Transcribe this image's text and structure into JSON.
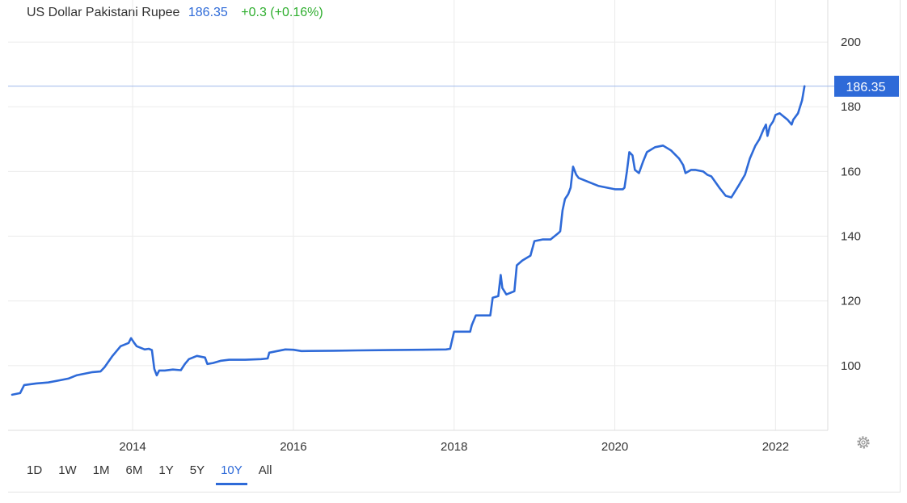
{
  "header": {
    "name": "US Dollar Pakistani Rupee",
    "price": "186.35",
    "change": "+0.3 (+0.16%)"
  },
  "ranges": [
    {
      "label": "1D",
      "active": false
    },
    {
      "label": "1W",
      "active": false
    },
    {
      "label": "1M",
      "active": false
    },
    {
      "label": "6M",
      "active": false
    },
    {
      "label": "1Y",
      "active": false
    },
    {
      "label": "5Y",
      "active": false
    },
    {
      "label": "10Y",
      "active": true
    },
    {
      "label": "All",
      "active": false
    }
  ],
  "settings_icon": "gear-icon",
  "colors": {
    "line": "#2e6ad8",
    "up": "#2fae2f",
    "grid": "#ebebeb",
    "price_tag": "#2e6ad8"
  },
  "chart_data": {
    "type": "line",
    "title": "US Dollar Pakistani Rupee",
    "last_value_label": "186.35",
    "x_ticks": [
      "2014",
      "2016",
      "2018",
      "2020",
      "2022"
    ],
    "y_ticks": [
      100,
      120,
      140,
      160,
      180,
      200
    ],
    "xlim": [
      2012.45,
      2022.65
    ],
    "ylim": [
      80,
      213
    ],
    "grid": true,
    "series": [
      {
        "values": [
          [
            2012.5,
            91
          ],
          [
            2012.6,
            91.5
          ],
          [
            2012.65,
            94
          ],
          [
            2012.8,
            94.5
          ],
          [
            2012.95,
            94.8
          ],
          [
            2013.1,
            95.5
          ],
          [
            2013.2,
            96
          ],
          [
            2013.3,
            97
          ],
          [
            2013.5,
            98
          ],
          [
            2013.6,
            98.2
          ],
          [
            2013.65,
            99.5
          ],
          [
            2013.75,
            103
          ],
          [
            2013.85,
            106
          ],
          [
            2013.95,
            107
          ],
          [
            2013.98,
            108.5
          ],
          [
            2014.02,
            107
          ],
          [
            2014.05,
            106
          ],
          [
            2014.15,
            105
          ],
          [
            2014.2,
            105.2
          ],
          [
            2014.24,
            104.8
          ],
          [
            2014.27,
            99
          ],
          [
            2014.3,
            97
          ],
          [
            2014.33,
            98.5
          ],
          [
            2014.4,
            98.5
          ],
          [
            2014.5,
            98.8
          ],
          [
            2014.6,
            98.6
          ],
          [
            2014.65,
            100.5
          ],
          [
            2014.7,
            102
          ],
          [
            2014.8,
            103
          ],
          [
            2014.9,
            102.5
          ],
          [
            2014.93,
            100.5
          ],
          [
            2015.0,
            100.8
          ],
          [
            2015.1,
            101.5
          ],
          [
            2015.2,
            101.8
          ],
          [
            2015.4,
            101.8
          ],
          [
            2015.6,
            102
          ],
          [
            2015.68,
            102.2
          ],
          [
            2015.7,
            104
          ],
          [
            2015.8,
            104.5
          ],
          [
            2015.9,
            105
          ],
          [
            2016.0,
            104.9
          ],
          [
            2016.1,
            104.5
          ],
          [
            2016.5,
            104.6
          ],
          [
            2016.8,
            104.7
          ],
          [
            2017.2,
            104.8
          ],
          [
            2017.6,
            104.9
          ],
          [
            2017.9,
            105
          ],
          [
            2017.95,
            105.2
          ],
          [
            2018.0,
            110.5
          ],
          [
            2018.1,
            110.5
          ],
          [
            2018.2,
            110.5
          ],
          [
            2018.22,
            112.5
          ],
          [
            2018.27,
            115.5
          ],
          [
            2018.45,
            115.5
          ],
          [
            2018.48,
            121
          ],
          [
            2018.55,
            121.5
          ],
          [
            2018.58,
            128
          ],
          [
            2018.6,
            124
          ],
          [
            2018.65,
            122
          ],
          [
            2018.75,
            123
          ],
          [
            2018.78,
            131
          ],
          [
            2018.85,
            132.5
          ],
          [
            2018.95,
            134
          ],
          [
            2019.0,
            138.5
          ],
          [
            2019.1,
            139
          ],
          [
            2019.2,
            139
          ],
          [
            2019.3,
            141
          ],
          [
            2019.32,
            141.5
          ],
          [
            2019.35,
            148
          ],
          [
            2019.38,
            151.5
          ],
          [
            2019.42,
            153
          ],
          [
            2019.45,
            155
          ],
          [
            2019.48,
            161.5
          ],
          [
            2019.52,
            159
          ],
          [
            2019.55,
            158
          ],
          [
            2019.6,
            157.5
          ],
          [
            2019.7,
            156.5
          ],
          [
            2019.8,
            155.5
          ],
          [
            2019.9,
            155
          ],
          [
            2020.0,
            154.5
          ],
          [
            2020.1,
            154.5
          ],
          [
            2020.12,
            155
          ],
          [
            2020.15,
            160
          ],
          [
            2020.18,
            166
          ],
          [
            2020.22,
            165
          ],
          [
            2020.25,
            160.5
          ],
          [
            2020.3,
            159.5
          ],
          [
            2020.35,
            163
          ],
          [
            2020.4,
            166
          ],
          [
            2020.5,
            167.5
          ],
          [
            2020.6,
            168
          ],
          [
            2020.7,
            166.5
          ],
          [
            2020.8,
            164
          ],
          [
            2020.85,
            162
          ],
          [
            2020.88,
            159.5
          ],
          [
            2020.95,
            160.5
          ],
          [
            2021.0,
            160.5
          ],
          [
            2021.1,
            160
          ],
          [
            2021.15,
            159
          ],
          [
            2021.2,
            158.5
          ],
          [
            2021.3,
            155
          ],
          [
            2021.38,
            152.5
          ],
          [
            2021.45,
            152
          ],
          [
            2021.55,
            156
          ],
          [
            2021.62,
            159
          ],
          [
            2021.68,
            164
          ],
          [
            2021.75,
            168
          ],
          [
            2021.8,
            170
          ],
          [
            2021.85,
            173
          ],
          [
            2021.88,
            174.5
          ],
          [
            2021.9,
            171
          ],
          [
            2021.93,
            174
          ],
          [
            2021.97,
            175.5
          ],
          [
            2022.0,
            177.5
          ],
          [
            2022.05,
            178
          ],
          [
            2022.1,
            177
          ],
          [
            2022.15,
            176
          ],
          [
            2022.2,
            174.5
          ],
          [
            2022.22,
            176
          ],
          [
            2022.28,
            178
          ],
          [
            2022.33,
            182
          ],
          [
            2022.36,
            186.35
          ]
        ]
      }
    ]
  }
}
